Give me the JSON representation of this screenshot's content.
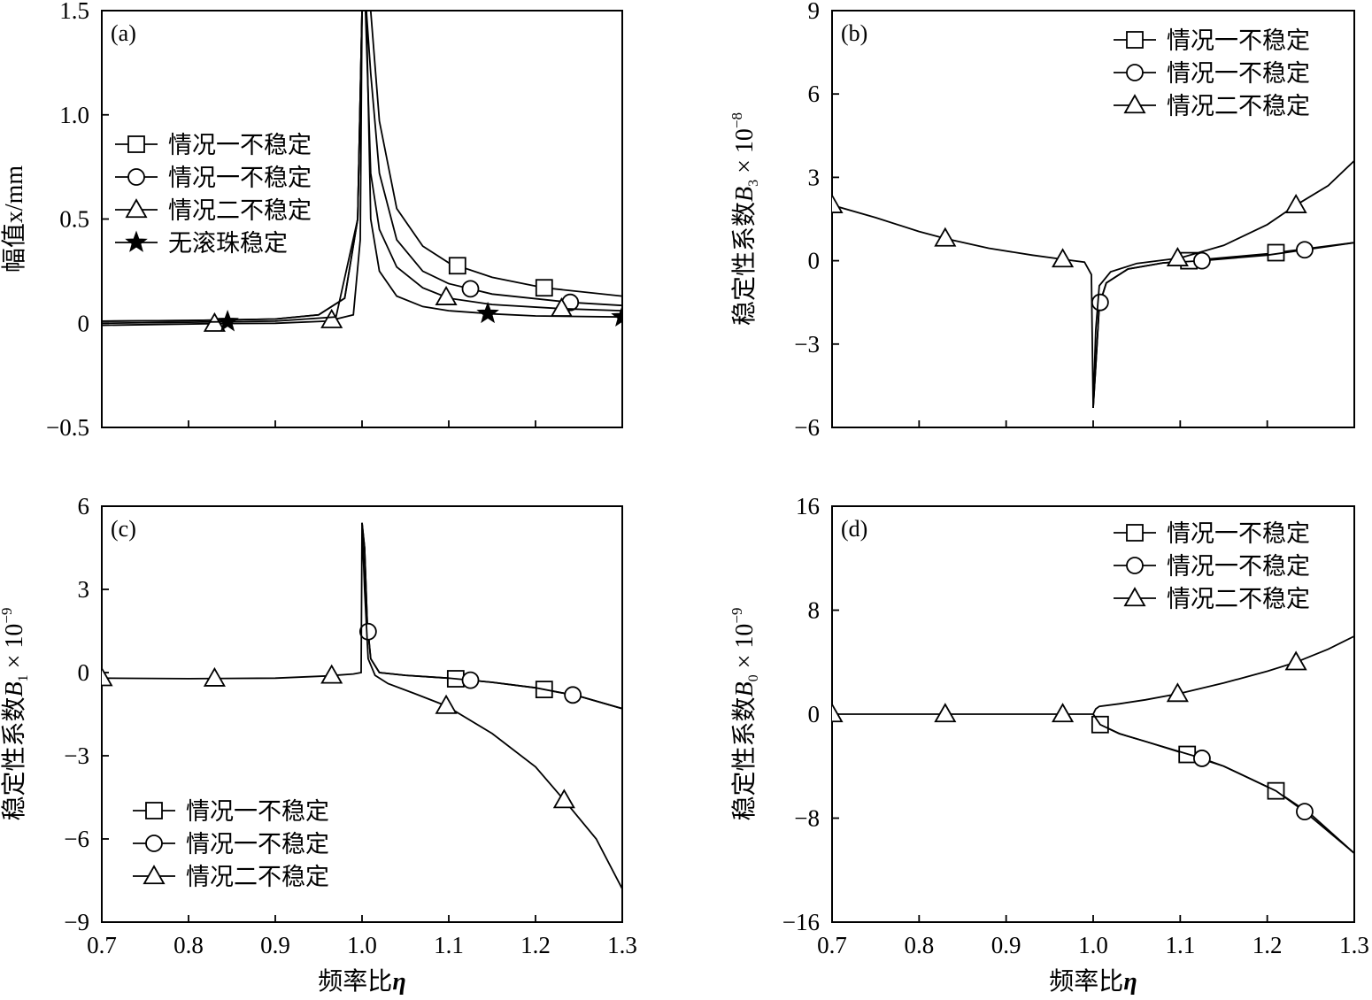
{
  "legend_labels": {
    "case1_square": "情况一不稳定",
    "case1_circle": "情况一不稳定",
    "case2_triangle": "情况二不稳定",
    "no_ball_star": "无滚珠稳定"
  },
  "chart_data": [
    {
      "type": "line",
      "panel_label": "(a)",
      "xlabel": "",
      "ylabel": "幅值x/mm",
      "xlim": [
        0.7,
        1.3
      ],
      "ylim": [
        -0.5,
        1.5
      ],
      "xticks": [
        "",
        "",
        "",
        "",
        "",
        "",
        ""
      ],
      "yticks": [
        "1.5",
        "1.0",
        "0.5",
        "0",
        "−0.5"
      ],
      "ytick_values": [
        1.5,
        1.0,
        0.5,
        0,
        -0.5
      ],
      "legend_position": "left",
      "series": [
        {
          "name": "情况一不稳定",
          "marker": "square",
          "x": [
            0.7,
            0.8,
            0.9,
            0.95,
            0.98,
            0.995,
            1.0,
            1.005,
            1.01,
            1.02,
            1.04,
            1.07,
            1.1,
            1.15,
            1.21,
            1.3
          ],
          "y": [
            0.01,
            0.013,
            0.02,
            0.04,
            0.12,
            0.5,
            1.5,
            1.5,
            1.5,
            0.97,
            0.55,
            0.37,
            0.29,
            0.22,
            0.17,
            0.13
          ],
          "marker_x": [
            1.11,
            1.21
          ]
        },
        {
          "name": "情况一不稳定",
          "marker": "circle",
          "x": [
            0.7,
            0.8,
            0.9,
            0.95,
            0.98,
            0.995,
            1.0,
            1.005,
            1.01,
            1.02,
            1.04,
            1.07,
            1.1,
            1.15,
            1.24,
            1.3
          ],
          "y": [
            0.01,
            0.013,
            0.02,
            0.04,
            0.12,
            0.5,
            1.5,
            1.5,
            1.2,
            0.72,
            0.4,
            0.25,
            0.19,
            0.14,
            0.1,
            0.085
          ],
          "marker_x": [
            1.125,
            1.24
          ]
        },
        {
          "name": "情况二不稳定",
          "marker": "triangle",
          "x": [
            0.7,
            0.83,
            0.9,
            0.96,
            0.99,
            0.998,
            1.0,
            1.004,
            1.01,
            1.02,
            1.04,
            1.07,
            1.1,
            1.15,
            1.23,
            1.3
          ],
          "y": [
            -0.01,
            -0.002,
            0.0,
            0.01,
            0.04,
            0.4,
            1.5,
            1.5,
            0.72,
            0.45,
            0.27,
            0.17,
            0.12,
            0.09,
            0.07,
            0.06
          ],
          "marker_x": [
            0.83,
            0.965,
            1.097,
            1.23
          ]
        },
        {
          "name": "无滚珠稳定",
          "marker": "star",
          "x": [
            0.7,
            0.8,
            0.9,
            0.97,
            0.995,
            1.0,
            1.005,
            1.01,
            1.02,
            1.04,
            1.07,
            1.1,
            1.15,
            1.2,
            1.3
          ],
          "y": [
            0.0,
            0.005,
            0.01,
            0.03,
            0.5,
            1.5,
            1.5,
            0.5,
            0.25,
            0.13,
            0.08,
            0.06,
            0.045,
            0.035,
            0.03
          ],
          "marker_x": [
            0.845,
            1.145,
            1.3
          ]
        }
      ]
    },
    {
      "type": "line",
      "panel_label": "(b)",
      "xlabel": "",
      "ylabel": "稳定性系数B3 × 10−8",
      "ylabel_parts": {
        "main": "稳定性系数",
        "var": "B",
        "sub": "3",
        "mult": " × 10",
        "exp": "−8"
      },
      "xlim": [
        0.7,
        1.3
      ],
      "ylim": [
        -6,
        9
      ],
      "xticks": [
        "",
        "",
        "",
        "",
        "",
        "",
        ""
      ],
      "yticks": [
        "9",
        "6",
        "3",
        "0",
        "−3",
        "−6"
      ],
      "ytick_values": [
        9,
        6,
        3,
        0,
        -3,
        -6
      ],
      "legend_position": "top-right",
      "series": [
        {
          "name": "情况一不稳定",
          "marker": "square",
          "x": [
            1.0,
            1.003,
            1.007,
            1.015,
            1.04,
            1.08,
            1.11,
            1.2,
            1.3
          ],
          "y": [
            -5.3,
            -3.8,
            -1.6,
            -0.8,
            -0.3,
            -0.08,
            0.0,
            0.25,
            0.65
          ],
          "marker_x": [
            1.11,
            1.21
          ]
        },
        {
          "name": "情况一不稳定",
          "marker": "circle",
          "x": [
            1.0,
            1.003,
            1.007,
            1.015,
            1.04,
            1.08,
            1.125,
            1.2,
            1.3
          ],
          "y": [
            -5.3,
            -3.8,
            -1.6,
            -0.8,
            -0.3,
            -0.08,
            0.0,
            0.2,
            0.65
          ],
          "marker_x": [
            1.008,
            1.125,
            1.243
          ]
        },
        {
          "name": "情况二不稳定",
          "marker": "triangle",
          "x": [
            0.7,
            0.75,
            0.8,
            0.83,
            0.88,
            0.93,
            0.965,
            0.99,
            0.998,
            1.0,
            1.003,
            1.007,
            1.02,
            1.05,
            1.1,
            1.15,
            1.2,
            1.233,
            1.27,
            1.3
          ],
          "y": [
            2.0,
            1.55,
            1.05,
            0.8,
            0.45,
            0.2,
            0.05,
            -0.05,
            -0.5,
            -5.3,
            -2.5,
            -0.9,
            -0.4,
            -0.1,
            0.1,
            0.55,
            1.3,
            2.0,
            2.7,
            3.6
          ],
          "marker_x": [
            0.7,
            0.83,
            0.965,
            1.097,
            1.233
          ]
        }
      ]
    },
    {
      "type": "line",
      "panel_label": "(c)",
      "xlabel": "频率比η",
      "ylabel": "稳定性系数B1 × 10−9",
      "ylabel_parts": {
        "main": "稳定性系数",
        "var": "B",
        "sub": "1",
        "mult": " × 10",
        "exp": "−9"
      },
      "xlim": [
        0.7,
        1.3
      ],
      "ylim": [
        -9,
        6
      ],
      "xticks": [
        "0.7",
        "0.8",
        "0.9",
        "1.0",
        "1.1",
        "1.2",
        "1.3"
      ],
      "xtick_values": [
        0.7,
        0.8,
        0.9,
        1.0,
        1.1,
        1.2,
        1.3
      ],
      "yticks": [
        "6",
        "3",
        "0",
        "−3",
        "−6",
        "−9"
      ],
      "ytick_values": [
        6,
        3,
        0,
        -3,
        -6,
        -9
      ],
      "legend_position": "bottom-left",
      "series": [
        {
          "name": "情况一不稳定",
          "marker": "square",
          "x": [
            1.0,
            1.003,
            1.006,
            1.01,
            1.02,
            1.05,
            1.1,
            1.15,
            1.2,
            1.25,
            1.3
          ],
          "y": [
            5.4,
            4.5,
            1.8,
            0.5,
            0.0,
            -0.1,
            -0.2,
            -0.35,
            -0.55,
            -0.85,
            -1.3
          ],
          "marker_x": [
            1.108,
            1.21
          ]
        },
        {
          "name": "情况一不稳定",
          "marker": "circle",
          "x": [
            1.0,
            1.003,
            1.006,
            1.01,
            1.02,
            1.05,
            1.1,
            1.15,
            1.2,
            1.25,
            1.3
          ],
          "y": [
            5.4,
            4.5,
            1.8,
            0.5,
            0.0,
            -0.1,
            -0.2,
            -0.35,
            -0.55,
            -0.85,
            -1.3
          ],
          "marker_x": [
            1.007,
            1.125,
            1.243
          ]
        },
        {
          "name": "情况二不稳定",
          "marker": "triangle",
          "x": [
            0.7,
            0.8,
            0.9,
            0.96,
            0.99,
            0.999,
            1.0,
            1.003,
            1.007,
            1.015,
            1.03,
            1.06,
            1.097,
            1.15,
            1.2,
            1.233,
            1.27,
            1.3
          ],
          "y": [
            -0.2,
            -0.22,
            -0.2,
            -0.12,
            -0.05,
            0.0,
            5.4,
            3.0,
            0.5,
            -0.1,
            -0.4,
            -0.75,
            -1.2,
            -2.2,
            -3.4,
            -4.6,
            -6.0,
            -7.8
          ],
          "marker_x": [
            0.7,
            0.83,
            0.965,
            1.097,
            1.233
          ]
        }
      ]
    },
    {
      "type": "line",
      "panel_label": "(d)",
      "xlabel": "频率比η",
      "ylabel": "稳定性系数B0 × 10−9",
      "ylabel_parts": {
        "main": "稳定性系数",
        "var": "B",
        "sub": "0",
        "mult": " × 10",
        "exp": "−9"
      },
      "xlim": [
        0.7,
        1.3
      ],
      "ylim": [
        -16,
        16
      ],
      "xticks": [
        "0.7",
        "0.8",
        "0.9",
        "1.0",
        "1.1",
        "1.2",
        "1.3"
      ],
      "xtick_values": [
        0.7,
        0.8,
        0.9,
        1.0,
        1.1,
        1.2,
        1.3
      ],
      "yticks": [
        "16",
        "8",
        "0",
        "−8",
        "−16"
      ],
      "ytick_values": [
        16,
        8,
        0,
        -8,
        -16
      ],
      "legend_position": "top-right",
      "series": [
        {
          "name": "情况一不稳定",
          "marker": "square",
          "x": [
            1.0,
            1.004,
            1.008,
            1.03,
            1.06,
            1.108,
            1.15,
            1.21,
            1.25,
            1.3
          ],
          "y": [
            0.0,
            -0.4,
            -0.8,
            -1.5,
            -2.1,
            -3.1,
            -4.0,
            -5.9,
            -7.7,
            -10.7
          ],
          "marker_x": [
            1.008,
            1.108,
            1.21
          ]
        },
        {
          "name": "情况一不稳定",
          "marker": "circle",
          "x": [
            1.0,
            1.004,
            1.008,
            1.03,
            1.06,
            1.125,
            1.15,
            1.21,
            1.243,
            1.3
          ],
          "y": [
            0.0,
            -0.4,
            -0.8,
            -1.5,
            -2.1,
            -3.4,
            -4.0,
            -5.9,
            -7.5,
            -10.7
          ],
          "marker_x": [
            1.125,
            1.243
          ]
        },
        {
          "name": "情况二不稳定",
          "marker": "triangle",
          "x": [
            0.7,
            0.83,
            0.965,
            1.0,
            1.003,
            1.007,
            1.03,
            1.06,
            1.1,
            1.15,
            1.2,
            1.233,
            1.27,
            1.3
          ],
          "y": [
            0.0,
            0.0,
            0.0,
            0.0,
            0.4,
            0.6,
            0.8,
            1.1,
            1.6,
            2.4,
            3.3,
            4.0,
            5.0,
            6.0
          ],
          "marker_x": [
            0.7,
            0.83,
            0.965,
            1.097,
            1.233
          ]
        }
      ]
    }
  ]
}
